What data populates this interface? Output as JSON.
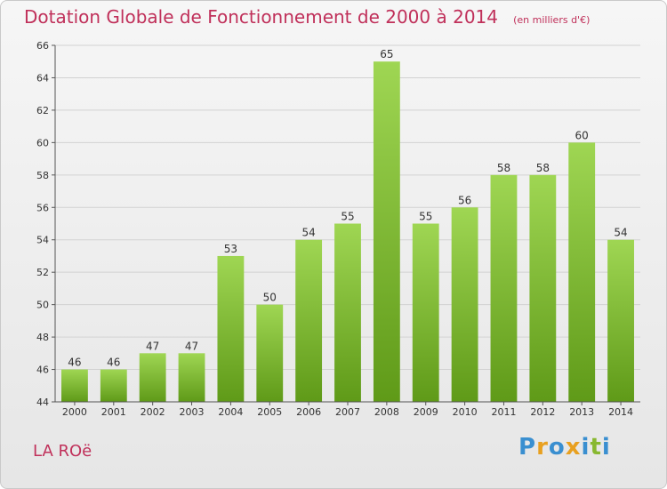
{
  "chart_data": {
    "type": "bar",
    "title": "Dotation Globale de Fonctionnement de 2000 à 2014",
    "subtitle": "(en milliers d'€)",
    "categories": [
      "2000",
      "2001",
      "2002",
      "2003",
      "2004",
      "2005",
      "2006",
      "2007",
      "2008",
      "2009",
      "2010",
      "2011",
      "2012",
      "2013",
      "2014"
    ],
    "values": [
      46,
      46,
      47,
      47,
      53,
      50,
      54,
      55,
      65,
      55,
      56,
      58,
      58,
      60,
      54
    ],
    "ylim": [
      44,
      66
    ],
    "yticks": [
      44,
      46,
      48,
      50,
      52,
      54,
      56,
      58,
      60,
      62,
      64,
      66
    ],
    "grid": true,
    "bar_color": "#7cb82f"
  },
  "commune": "LA ROë",
  "logo": {
    "text": "Proxiti",
    "letters": [
      {
        "ch": "P",
        "color": "#3a8fd0"
      },
      {
        "ch": "r",
        "color": "#e8a020"
      },
      {
        "ch": "o",
        "color": "#3a8fd0"
      },
      {
        "ch": "x",
        "color": "#e8a020"
      },
      {
        "ch": "i",
        "color": "#3a8fd0"
      },
      {
        "ch": "t",
        "color": "#88b830"
      },
      {
        "ch": "i",
        "color": "#3a8fd0"
      }
    ]
  }
}
